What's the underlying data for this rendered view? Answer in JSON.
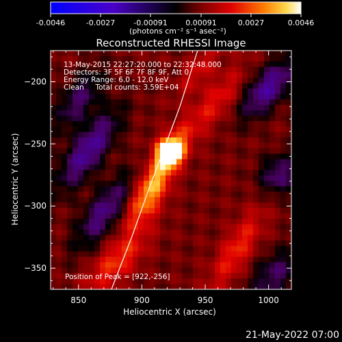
{
  "colorbar": {
    "ticks": [
      "-0.0046",
      "-0.0027",
      "-0.00091",
      "0.00091",
      "0.0027",
      "0.0046"
    ],
    "unit_label": "(photons cm⁻² s⁻¹ asec⁻²)"
  },
  "title": "Reconstructed RHESSI Image",
  "info_lines": [
    "13-May-2015 22:27:20.000 to 22:32:48.000",
    "Detectors: 3F 5F 6F 7F 8F 9F, Att 0",
    "Energy Range: 6.0 - 12.0 keV",
    "Clean     Total counts: 3.59E+04"
  ],
  "peak_label": "Position of Peak = [922,-256]",
  "footer_timestamp": "21-May-2022 07:00",
  "chart_data": {
    "type": "heatmap",
    "title": "Reconstructed RHESSI Image",
    "xlabel": "Heliocentric X (arcsec)",
    "ylabel": "Heliocentric Y (arcsec)",
    "xlim": [
      828,
      1018
    ],
    "ylim": [
      -367,
      -175
    ],
    "x_ticks": [
      850,
      900,
      950,
      1000
    ],
    "y_ticks": [
      -200,
      -250,
      -300,
      -350
    ],
    "x_tick_labels": [
      "850",
      "900",
      "950",
      "1000"
    ],
    "y_tick_labels": [
      "−200",
      "−250",
      "−300",
      "−350"
    ],
    "value_range": [
      -0.0046,
      0.0046
    ],
    "peak": {
      "x": 922,
      "y": -256
    },
    "sources": [
      {
        "x": 922,
        "y": -256,
        "amp": 0.0046,
        "sx": 7,
        "sy": 7,
        "rot": 0
      },
      {
        "x": 918,
        "y": -265,
        "amp": 0.0022,
        "sx": 26,
        "sy": 7,
        "rot": 58
      },
      {
        "x": 905,
        "y": -295,
        "amp": 0.0018,
        "sx": 20,
        "sy": 8,
        "rot": 60
      },
      {
        "x": 880,
        "y": -345,
        "amp": 0.0016,
        "sx": 22,
        "sy": 9,
        "rot": 45
      },
      {
        "x": 975,
        "y": -335,
        "amp": 0.0015,
        "sx": 26,
        "sy": 8,
        "rot": 60
      },
      {
        "x": 960,
        "y": -215,
        "amp": 0.0012,
        "sx": 22,
        "sy": 8,
        "rot": 55
      },
      {
        "x": 945,
        "y": -190,
        "amp": 0.001,
        "sx": 18,
        "sy": 7,
        "rot": 55
      },
      {
        "x": 858,
        "y": -255,
        "amp": -0.0024,
        "sx": 26,
        "sy": 9,
        "rot": 55
      },
      {
        "x": 870,
        "y": -305,
        "amp": -0.002,
        "sx": 24,
        "sy": 9,
        "rot": 55
      },
      {
        "x": 850,
        "y": -215,
        "amp": -0.0016,
        "sx": 20,
        "sy": 9,
        "rot": 55
      },
      {
        "x": 1000,
        "y": -205,
        "amp": -0.0024,
        "sx": 20,
        "sy": 9,
        "rot": 50
      },
      {
        "x": 1008,
        "y": -275,
        "amp": -0.0018,
        "sx": 12,
        "sy": 10,
        "rot": 60
      },
      {
        "x": 1005,
        "y": -355,
        "amp": -0.0016,
        "sx": 16,
        "sy": 10,
        "rot": 50
      }
    ],
    "limb_arc": [
      [
        876,
        -367
      ],
      [
        892,
        -325
      ],
      [
        906,
        -285
      ],
      [
        919,
        -250
      ],
      [
        930,
        -220
      ],
      [
        944,
        -175
      ]
    ]
  }
}
